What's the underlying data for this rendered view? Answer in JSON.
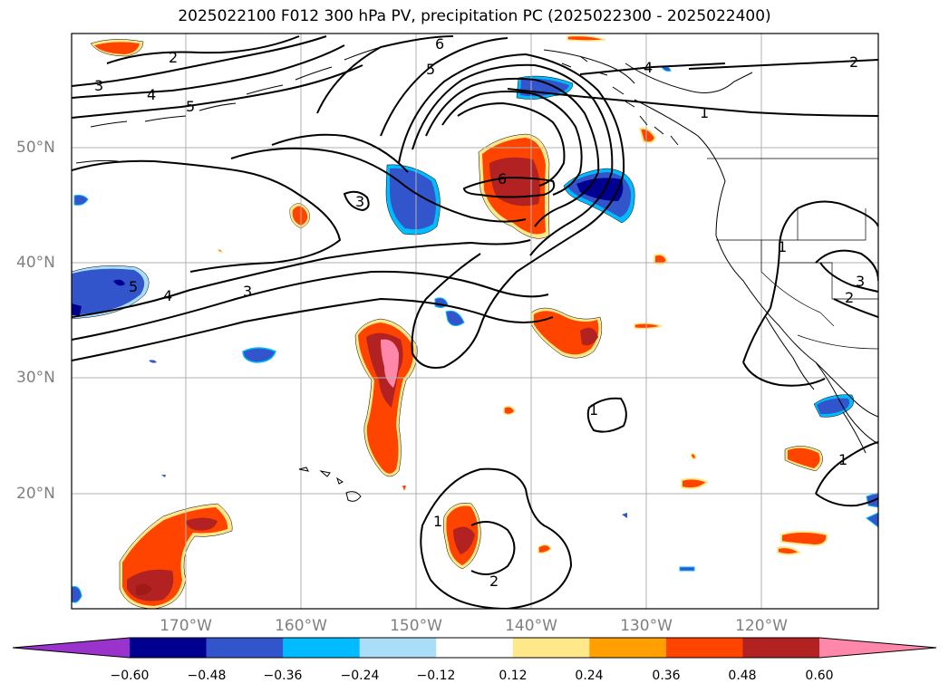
{
  "title": "2025022100 F012 300 hPa PV, precipitation PC (2025022300 - 2025022400)",
  "lat_labels": [
    "50°N",
    "40°N",
    "30°N",
    "20°N"
  ],
  "lon_labels": [
    "170°W",
    "160°W",
    "150°W",
    "140°W",
    "130°W",
    "120°W"
  ],
  "contour_labels": [
    "1",
    "2",
    "3",
    "4",
    "5",
    "6"
  ],
  "colorbar": {
    "ticks": [
      "−0.60",
      "−0.48",
      "−0.36",
      "−0.24",
      "−0.12",
      "0.12",
      "0.24",
      "0.36",
      "0.48",
      "0.60"
    ],
    "colors": [
      "#9933cc",
      "#000090",
      "#3355cc",
      "#00bbff",
      "#aaddf8",
      "#ffffff",
      "#ffe88a",
      "#ffa000",
      "#ff4400",
      "#b22222",
      "#ff88aa"
    ]
  }
}
